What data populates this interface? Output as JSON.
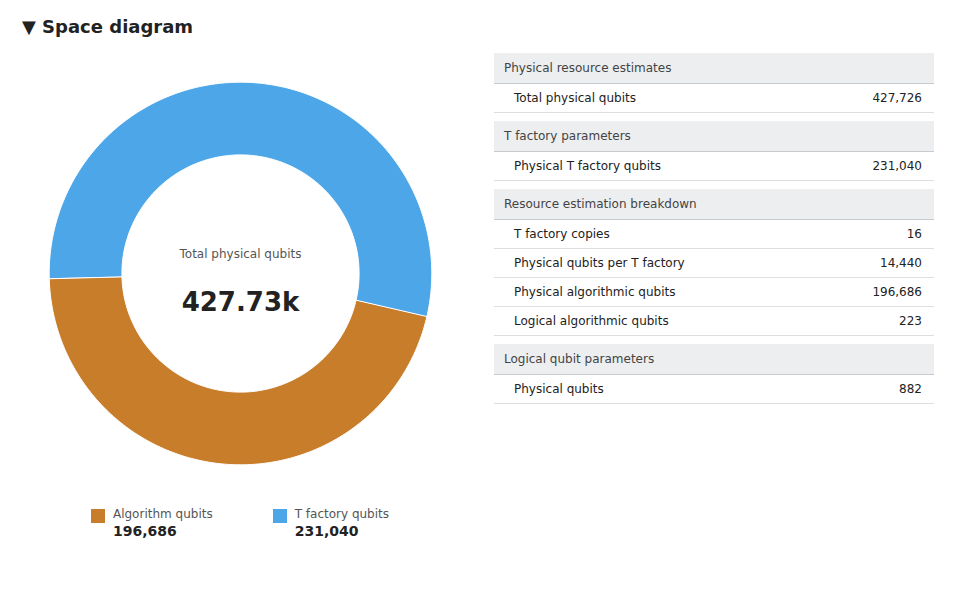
{
  "chart_data": {
    "type": "donut",
    "title": "▼ Space diagram",
    "categories": [
      "Algorithm qubits",
      "T factory qubits"
    ],
    "values": [
      196686,
      231040
    ],
    "value_labels": [
      "196,686",
      "231,040"
    ],
    "colors": [
      "#c87d2a",
      "#4da6e8"
    ],
    "annotations": [
      "Total physical qubits",
      "427.73k"
    ],
    "legend": "bottom",
    "table": [
      {
        "header": "Physical resource estimates",
        "rows": [
          {
            "label": "Total physical qubits",
            "value": "427,726"
          }
        ]
      },
      {
        "header": "T factory parameters",
        "rows": [
          {
            "label": "Physical T factory qubits",
            "value": "231,040"
          }
        ]
      },
      {
        "header": "Resource estimation breakdown",
        "rows": [
          {
            "label": "T factory copies",
            "value": "16"
          },
          {
            "label": "Physical qubits per T factory",
            "value": "14,440"
          },
          {
            "label": "Physical algorithmic qubits",
            "value": "196,686"
          },
          {
            "label": "Logical algorithmic qubits",
            "value": "223"
          }
        ]
      },
      {
        "header": "Logical qubit parameters",
        "rows": [
          {
            "label": "Physical qubits",
            "value": "882"
          }
        ]
      }
    ]
  }
}
